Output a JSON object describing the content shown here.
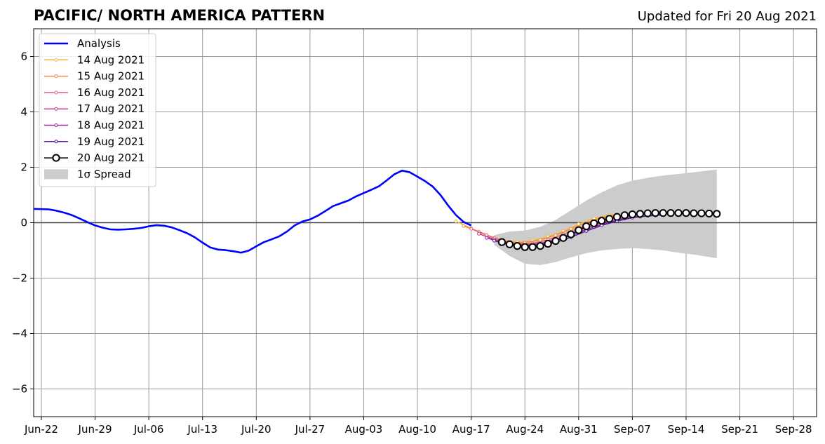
{
  "chart_data": {
    "type": "line",
    "title": "PACIFIC/ NORTH AMERICA PATTERN",
    "subtitle": "Updated for Fri 20 Aug 2021",
    "xlabel": "",
    "ylabel": "",
    "x_range": [
      "2021-06-21",
      "2021-10-01"
    ],
    "ylim": [
      -7,
      7
    ],
    "grid": true,
    "legend_position": "top-left",
    "x_ticks": [
      {
        "date": "2021-06-22",
        "label": "Jun-22"
      },
      {
        "date": "2021-06-29",
        "label": "Jun-29"
      },
      {
        "date": "2021-07-06",
        "label": "Jul-06"
      },
      {
        "date": "2021-07-13",
        "label": "Jul-13"
      },
      {
        "date": "2021-07-20",
        "label": "Jul-20"
      },
      {
        "date": "2021-07-27",
        "label": "Jul-27"
      },
      {
        "date": "2021-08-03",
        "label": "Aug-03"
      },
      {
        "date": "2021-08-10",
        "label": "Aug-10"
      },
      {
        "date": "2021-08-17",
        "label": "Aug-17"
      },
      {
        "date": "2021-08-24",
        "label": "Aug-24"
      },
      {
        "date": "2021-08-31",
        "label": "Aug-31"
      },
      {
        "date": "2021-09-07",
        "label": "Sep-07"
      },
      {
        "date": "2021-09-14",
        "label": "Sep-14"
      },
      {
        "date": "2021-09-21",
        "label": "Sep-21"
      },
      {
        "date": "2021-09-28",
        "label": "Sep-28"
      }
    ],
    "y_ticks": [
      {
        "value": 6,
        "label": "6"
      },
      {
        "value": 4,
        "label": "4"
      },
      {
        "value": 2,
        "label": "2"
      },
      {
        "value": 0,
        "label": "0"
      },
      {
        "value": -2,
        "label": "−2"
      },
      {
        "value": -4,
        "label": "−4"
      },
      {
        "value": -6,
        "label": "−6"
      }
    ],
    "analysis": {
      "name": "Analysis",
      "color": "#0000ff",
      "points": [
        [
          "2021-06-21",
          0.5
        ],
        [
          "2021-06-23",
          0.48
        ],
        [
          "2021-06-24",
          0.43
        ],
        [
          "2021-06-25",
          0.36
        ],
        [
          "2021-06-26",
          0.27
        ],
        [
          "2021-06-27",
          0.15
        ],
        [
          "2021-06-28",
          0.02
        ],
        [
          "2021-06-29",
          -0.1
        ],
        [
          "2021-06-30",
          -0.18
        ],
        [
          "2021-07-01",
          -0.24
        ],
        [
          "2021-07-02",
          -0.25
        ],
        [
          "2021-07-03",
          -0.24
        ],
        [
          "2021-07-04",
          -0.22
        ],
        [
          "2021-07-05",
          -0.19
        ],
        [
          "2021-07-06",
          -0.13
        ],
        [
          "2021-07-07",
          -0.09
        ],
        [
          "2021-07-08",
          -0.11
        ],
        [
          "2021-07-09",
          -0.17
        ],
        [
          "2021-07-10",
          -0.27
        ],
        [
          "2021-07-11",
          -0.38
        ],
        [
          "2021-07-12",
          -0.53
        ],
        [
          "2021-07-13",
          -0.72
        ],
        [
          "2021-07-14",
          -0.89
        ],
        [
          "2021-07-15",
          -0.97
        ],
        [
          "2021-07-16",
          -0.99
        ],
        [
          "2021-07-17",
          -1.03
        ],
        [
          "2021-07-18",
          -1.08
        ],
        [
          "2021-07-19",
          -1.01
        ],
        [
          "2021-07-20",
          -0.85
        ],
        [
          "2021-07-21",
          -0.7
        ],
        [
          "2021-07-22",
          -0.6
        ],
        [
          "2021-07-23",
          -0.49
        ],
        [
          "2021-07-24",
          -0.32
        ],
        [
          "2021-07-25",
          -0.1
        ],
        [
          "2021-07-26",
          0.04
        ],
        [
          "2021-07-27",
          0.12
        ],
        [
          "2021-07-28",
          0.25
        ],
        [
          "2021-07-29",
          0.42
        ],
        [
          "2021-07-30",
          0.6
        ],
        [
          "2021-07-31",
          0.7
        ],
        [
          "2021-08-01",
          0.8
        ],
        [
          "2021-08-02",
          0.95
        ],
        [
          "2021-08-03",
          1.07
        ],
        [
          "2021-08-04",
          1.19
        ],
        [
          "2021-08-05",
          1.32
        ],
        [
          "2021-08-06",
          1.53
        ],
        [
          "2021-08-07",
          1.75
        ],
        [
          "2021-08-08",
          1.88
        ],
        [
          "2021-08-09",
          1.82
        ],
        [
          "2021-08-10",
          1.66
        ],
        [
          "2021-08-11",
          1.5
        ],
        [
          "2021-08-12",
          1.3
        ],
        [
          "2021-08-13",
          1.0
        ],
        [
          "2021-08-14",
          0.62
        ],
        [
          "2021-08-15",
          0.28
        ],
        [
          "2021-08-16",
          0.03
        ],
        [
          "2021-08-17",
          -0.1
        ]
      ]
    },
    "series": [
      {
        "name": "14 Aug 2021",
        "color": "#f7b93a",
        "points": [
          [
            "2021-08-15",
            0.05
          ],
          [
            "2021-08-17",
            -0.2
          ],
          [
            "2021-08-19",
            -0.45
          ],
          [
            "2021-08-21",
            -0.62
          ],
          [
            "2021-08-23",
            -0.7
          ],
          [
            "2021-08-25",
            -0.65
          ],
          [
            "2021-08-27",
            -0.5
          ],
          [
            "2021-08-29",
            -0.3
          ],
          [
            "2021-08-31",
            -0.05
          ],
          [
            "2021-09-02",
            0.15
          ],
          [
            "2021-09-04",
            0.28
          ],
          [
            "2021-09-05",
            0.3
          ]
        ]
      },
      {
        "name": "15 Aug 2021",
        "color": "#f08a45",
        "points": [
          [
            "2021-08-16",
            -0.12
          ],
          [
            "2021-08-18",
            -0.32
          ],
          [
            "2021-08-20",
            -0.55
          ],
          [
            "2021-08-22",
            -0.7
          ],
          [
            "2021-08-24",
            -0.72
          ],
          [
            "2021-08-26",
            -0.62
          ],
          [
            "2021-08-28",
            -0.45
          ],
          [
            "2021-08-30",
            -0.22
          ],
          [
            "2021-09-01",
            0.0
          ],
          [
            "2021-09-03",
            0.18
          ],
          [
            "2021-09-05",
            0.28
          ],
          [
            "2021-09-06",
            0.3
          ]
        ]
      },
      {
        "name": "16 Aug 2021",
        "color": "#e06479",
        "points": [
          [
            "2021-08-17",
            -0.22
          ],
          [
            "2021-08-19",
            -0.45
          ],
          [
            "2021-08-21",
            -0.65
          ],
          [
            "2021-08-23",
            -0.76
          ],
          [
            "2021-08-25",
            -0.75
          ],
          [
            "2021-08-27",
            -0.62
          ],
          [
            "2021-08-29",
            -0.42
          ],
          [
            "2021-08-31",
            -0.2
          ],
          [
            "2021-09-02",
            0.0
          ],
          [
            "2021-09-04",
            0.15
          ],
          [
            "2021-09-06",
            0.24
          ],
          [
            "2021-09-07",
            0.27
          ]
        ]
      },
      {
        "name": "17 Aug 2021",
        "color": "#c1408f",
        "points": [
          [
            "2021-08-18",
            -0.4
          ],
          [
            "2021-08-20",
            -0.6
          ],
          [
            "2021-08-22",
            -0.75
          ],
          [
            "2021-08-24",
            -0.8
          ],
          [
            "2021-08-26",
            -0.75
          ],
          [
            "2021-08-28",
            -0.6
          ],
          [
            "2021-08-30",
            -0.4
          ],
          [
            "2021-09-01",
            -0.18
          ],
          [
            "2021-09-03",
            0.0
          ],
          [
            "2021-09-05",
            0.13
          ],
          [
            "2021-09-07",
            0.2
          ],
          [
            "2021-09-08",
            0.22
          ]
        ]
      },
      {
        "name": "18 Aug 2021",
        "color": "#9823a8",
        "points": [
          [
            "2021-08-19",
            -0.55
          ],
          [
            "2021-08-21",
            -0.72
          ],
          [
            "2021-08-23",
            -0.82
          ],
          [
            "2021-08-25",
            -0.82
          ],
          [
            "2021-08-27",
            -0.72
          ],
          [
            "2021-08-29",
            -0.55
          ],
          [
            "2021-08-31",
            -0.35
          ],
          [
            "2021-09-02",
            -0.15
          ],
          [
            "2021-09-04",
            0.02
          ],
          [
            "2021-09-06",
            0.15
          ],
          [
            "2021-09-08",
            0.22
          ],
          [
            "2021-09-10",
            0.26
          ]
        ]
      },
      {
        "name": "19 Aug 2021",
        "color": "#5b1a9e",
        "points": [
          [
            "2021-08-20",
            -0.65
          ],
          [
            "2021-08-22",
            -0.8
          ],
          [
            "2021-08-24",
            -0.87
          ],
          [
            "2021-08-26",
            -0.84
          ],
          [
            "2021-08-28",
            -0.72
          ],
          [
            "2021-08-30",
            -0.52
          ],
          [
            "2021-09-01",
            -0.3
          ],
          [
            "2021-09-03",
            -0.1
          ],
          [
            "2021-09-05",
            0.06
          ],
          [
            "2021-09-07",
            0.18
          ],
          [
            "2021-09-09",
            0.25
          ],
          [
            "2021-09-11",
            0.28
          ]
        ]
      }
    ],
    "forecast_latest": {
      "name": "20 Aug 2021",
      "color": "#000000",
      "marker_fill": "#ffffff",
      "points": [
        [
          "2021-08-21",
          -0.7
        ],
        [
          "2021-08-22",
          -0.78
        ],
        [
          "2021-08-23",
          -0.84
        ],
        [
          "2021-08-24",
          -0.88
        ],
        [
          "2021-08-25",
          -0.88
        ],
        [
          "2021-08-26",
          -0.84
        ],
        [
          "2021-08-27",
          -0.76
        ],
        [
          "2021-08-28",
          -0.66
        ],
        [
          "2021-08-29",
          -0.55
        ],
        [
          "2021-08-30",
          -0.42
        ],
        [
          "2021-08-31",
          -0.27
        ],
        [
          "2021-09-01",
          -0.13
        ],
        [
          "2021-09-02",
          -0.02
        ],
        [
          "2021-09-03",
          0.07
        ],
        [
          "2021-09-04",
          0.14
        ],
        [
          "2021-09-05",
          0.21
        ],
        [
          "2021-09-06",
          0.27
        ],
        [
          "2021-09-07",
          0.3
        ],
        [
          "2021-09-08",
          0.32
        ],
        [
          "2021-09-09",
          0.34
        ],
        [
          "2021-09-10",
          0.35
        ],
        [
          "2021-09-11",
          0.35
        ],
        [
          "2021-09-12",
          0.35
        ],
        [
          "2021-09-13",
          0.35
        ],
        [
          "2021-09-14",
          0.35
        ],
        [
          "2021-09-15",
          0.34
        ],
        [
          "2021-09-16",
          0.34
        ],
        [
          "2021-09-17",
          0.33
        ],
        [
          "2021-09-18",
          0.32
        ]
      ]
    },
    "spread": {
      "name": "1σ Spread",
      "color": "#cccccc",
      "upper": [
        [
          "2021-08-20",
          -0.45
        ],
        [
          "2021-08-22",
          -0.32
        ],
        [
          "2021-08-24",
          -0.28
        ],
        [
          "2021-08-26",
          -0.15
        ],
        [
          "2021-08-28",
          0.1
        ],
        [
          "2021-08-30",
          0.45
        ],
        [
          "2021-09-01",
          0.8
        ],
        [
          "2021-09-03",
          1.1
        ],
        [
          "2021-09-05",
          1.35
        ],
        [
          "2021-09-07",
          1.52
        ],
        [
          "2021-09-09",
          1.62
        ],
        [
          "2021-09-11",
          1.7
        ],
        [
          "2021-09-13",
          1.76
        ],
        [
          "2021-09-15",
          1.82
        ],
        [
          "2021-09-18",
          1.92
        ]
      ],
      "lower": [
        [
          "2021-08-20",
          -0.8
        ],
        [
          "2021-08-22",
          -1.2
        ],
        [
          "2021-08-24",
          -1.48
        ],
        [
          "2021-08-26",
          -1.53
        ],
        [
          "2021-08-28",
          -1.42
        ],
        [
          "2021-08-30",
          -1.25
        ],
        [
          "2021-09-01",
          -1.1
        ],
        [
          "2021-09-03",
          -1.0
        ],
        [
          "2021-09-05",
          -0.95
        ],
        [
          "2021-09-07",
          -0.92
        ],
        [
          "2021-09-09",
          -0.95
        ],
        [
          "2021-09-11",
          -1.0
        ],
        [
          "2021-09-13",
          -1.08
        ],
        [
          "2021-09-15",
          -1.15
        ],
        [
          "2021-09-18",
          -1.28
        ]
      ]
    },
    "zero_line": 0
  }
}
